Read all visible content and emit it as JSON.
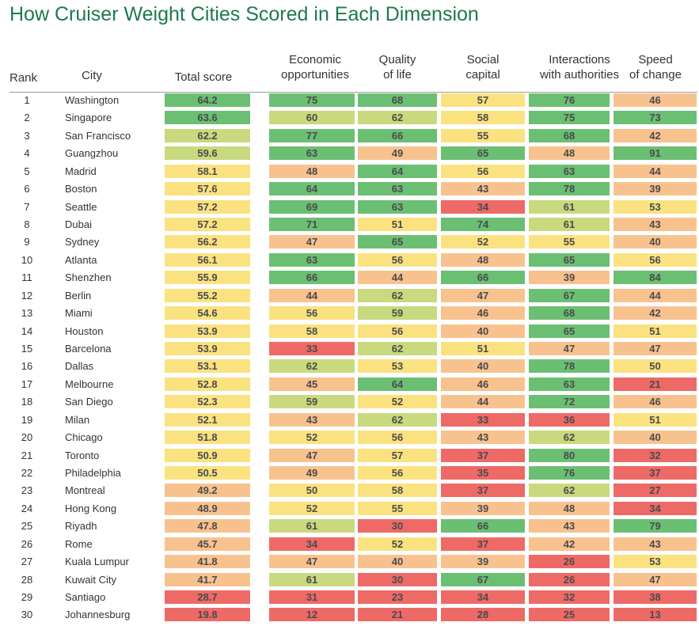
{
  "title": "How Cruiser Weight Cities Scored in Each Dimension",
  "columns": {
    "rank": "Rank",
    "city": "City",
    "total": "Total score",
    "economic": [
      "Economic",
      "opportunities"
    ],
    "quality": [
      "Quality",
      "of life"
    ],
    "social": [
      "Social",
      "capital"
    ],
    "authorities": [
      "Interactions",
      "with authorities"
    ],
    "speed": [
      "Speed",
      "of change"
    ]
  },
  "colors": {
    "dark_green": "#6bbf73",
    "light_green": "#c8da7d",
    "yellow": "#fbe281",
    "orange": "#f8c28f",
    "red": "#ee6a67",
    "title": "#1d7a4d"
  },
  "chart_data": {
    "type": "table",
    "title": "How Cruiser Weight Cities Scored in Each Dimension",
    "columns": [
      "Rank",
      "City",
      "Total score",
      "Economic opportunities",
      "Quality of life",
      "Social capital",
      "Interactions with authorities",
      "Speed of change"
    ],
    "rows": [
      {
        "rank": "1",
        "city": "Washington",
        "total": "64.2",
        "economic": "75",
        "quality": "68",
        "social": "57",
        "authorities": "76",
        "speed": "46"
      },
      {
        "rank": "2",
        "city": "Singapore",
        "total": "63.6",
        "economic": "60",
        "quality": "62",
        "social": "58",
        "authorities": "75",
        "speed": "73"
      },
      {
        "rank": "3",
        "city": "San Francisco",
        "total": "62.2",
        "economic": "77",
        "quality": "66",
        "social": "55",
        "authorities": "68",
        "speed": "42"
      },
      {
        "rank": "4",
        "city": "Guangzhou",
        "total": "59.6",
        "economic": "63",
        "quality": "49",
        "social": "65",
        "authorities": "48",
        "speed": "91"
      },
      {
        "rank": "5",
        "city": "Madrid",
        "total": "58.1",
        "economic": "48",
        "quality": "64",
        "social": "56",
        "authorities": "63",
        "speed": "44"
      },
      {
        "rank": "6",
        "city": "Boston",
        "total": "57.6",
        "economic": "64",
        "quality": "63",
        "social": "43",
        "authorities": "78",
        "speed": "39"
      },
      {
        "rank": "7",
        "city": "Seattle",
        "total": "57.2",
        "economic": "69",
        "quality": "63",
        "social": "34",
        "authorities": "61",
        "speed": "53"
      },
      {
        "rank": "8",
        "city": "Dubai",
        "total": "57.2",
        "economic": "71",
        "quality": "51",
        "social": "74",
        "authorities": "61",
        "speed": "43"
      },
      {
        "rank": "9",
        "city": "Sydney",
        "total": "56.2",
        "economic": "47",
        "quality": "65",
        "social": "52",
        "authorities": "55",
        "speed": "40"
      },
      {
        "rank": "10",
        "city": "Atlanta",
        "total": "56.1",
        "economic": "63",
        "quality": "56",
        "social": "48",
        "authorities": "65",
        "speed": "56"
      },
      {
        "rank": "11",
        "city": "Shenzhen",
        "total": "55.9",
        "economic": "66",
        "quality": "44",
        "social": "66",
        "authorities": "39",
        "speed": "84"
      },
      {
        "rank": "12",
        "city": "Berlin",
        "total": "55.2",
        "economic": "44",
        "quality": "62",
        "social": "47",
        "authorities": "67",
        "speed": "44"
      },
      {
        "rank": "13",
        "city": "Miami",
        "total": "54.6",
        "economic": "56",
        "quality": "59",
        "social": "46",
        "authorities": "68",
        "speed": "42"
      },
      {
        "rank": "14",
        "city": "Houston",
        "total": "53.9",
        "economic": "58",
        "quality": "56",
        "social": "40",
        "authorities": "65",
        "speed": "51"
      },
      {
        "rank": "15",
        "city": "Barcelona",
        "total": "53.9",
        "economic": "33",
        "quality": "62",
        "social": "51",
        "authorities": "47",
        "speed": "47"
      },
      {
        "rank": "16",
        "city": "Dallas",
        "total": "53.1",
        "economic": "62",
        "quality": "53",
        "social": "40",
        "authorities": "78",
        "speed": "50"
      },
      {
        "rank": "17",
        "city": "Melbourne",
        "total": "52.8",
        "economic": "45",
        "quality": "64",
        "social": "46",
        "authorities": "63",
        "speed": "21"
      },
      {
        "rank": "18",
        "city": "San Diego",
        "total": "52.3",
        "economic": "59",
        "quality": "52",
        "social": "44",
        "authorities": "72",
        "speed": "46"
      },
      {
        "rank": "19",
        "city": "Milan",
        "total": "52.1",
        "economic": "43",
        "quality": "62",
        "social": "33",
        "authorities": "36",
        "speed": "51"
      },
      {
        "rank": "20",
        "city": "Chicago",
        "total": "51.8",
        "economic": "52",
        "quality": "56",
        "social": "43",
        "authorities": "62",
        "speed": "40"
      },
      {
        "rank": "21",
        "city": "Toronto",
        "total": "50.9",
        "economic": "47",
        "quality": "57",
        "social": "37",
        "authorities": "80",
        "speed": "32"
      },
      {
        "rank": "22",
        "city": "Philadelphia",
        "total": "50.5",
        "economic": "49",
        "quality": "56",
        "social": "35",
        "authorities": "76",
        "speed": "37"
      },
      {
        "rank": "23",
        "city": "Montreal",
        "total": "49.2",
        "economic": "50",
        "quality": "58",
        "social": "37",
        "authorities": "62",
        "speed": "27"
      },
      {
        "rank": "24",
        "city": "Hong Kong",
        "total": "48.9",
        "economic": "52",
        "quality": "55",
        "social": "39",
        "authorities": "48",
        "speed": "34"
      },
      {
        "rank": "25",
        "city": "Riyadh",
        "total": "47.8",
        "economic": "61",
        "quality": "30",
        "social": "66",
        "authorities": "43",
        "speed": "79"
      },
      {
        "rank": "26",
        "city": "Rome",
        "total": "45.7",
        "economic": "34",
        "quality": "52",
        "social": "37",
        "authorities": "42",
        "speed": "43"
      },
      {
        "rank": "27",
        "city": "Kuala Lumpur",
        "total": "41.8",
        "economic": "47",
        "quality": "40",
        "social": "39",
        "authorities": "26",
        "speed": "53"
      },
      {
        "rank": "28",
        "city": "Kuwait City",
        "total": "41.7",
        "economic": "61",
        "quality": "30",
        "social": "67",
        "authorities": "26",
        "speed": "47"
      },
      {
        "rank": "29",
        "city": "Santiago",
        "total": "28.7",
        "economic": "31",
        "quality": "23",
        "social": "34",
        "authorities": "32",
        "speed": "38"
      },
      {
        "rank": "30",
        "city": "Johannesburg",
        "total": "19.8",
        "economic": "12",
        "quality": "21",
        "social": "28",
        "authorities": "25",
        "speed": "13"
      }
    ]
  }
}
